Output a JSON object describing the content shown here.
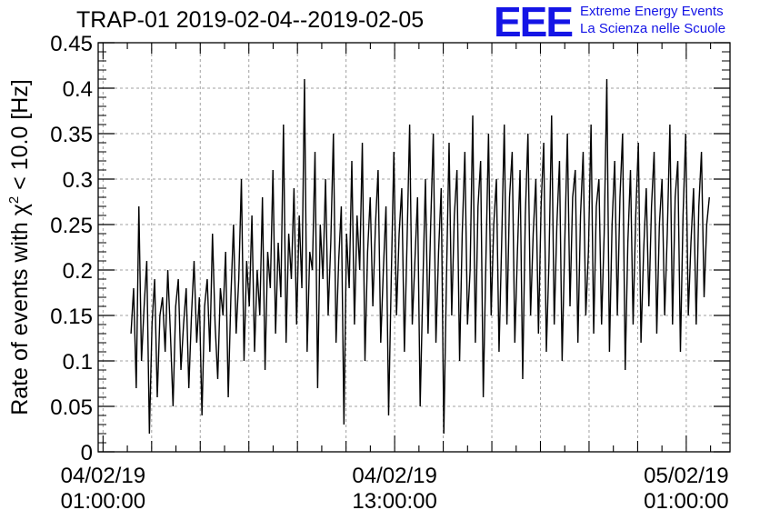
{
  "header": {
    "title": "TRAP-01 2019-02-04--2019-02-05",
    "logo_text": "EEE",
    "logo_line1": "Extreme Energy Events",
    "logo_line2": "La Scienza nelle Scuole"
  },
  "colors": {
    "logo": "#1414e6",
    "series": "#000000",
    "grid": "#a0a0a0"
  },
  "chart_data": {
    "type": "line",
    "ylabel_main": "Rate of events with ",
    "ylabel_chi": "χ",
    "ylabel_sup": "2",
    "ylabel_rest": " < 10.0 [Hz]",
    "xlabel": "",
    "ylim": [
      0,
      0.45
    ],
    "xlim_hours": [
      -0.2,
      25.8
    ],
    "grid": true,
    "y_ticks": [
      0,
      0.05,
      0.1,
      0.15,
      0.2,
      0.25,
      0.3,
      0.35,
      0.4,
      0.45
    ],
    "y_tick_labels": [
      "0",
      "0.05",
      "0.1",
      "0.15",
      "0.2",
      "0.25",
      "0.3",
      "0.35",
      "0.4",
      "0.45"
    ],
    "x_ticks": [
      {
        "hour": 0,
        "date": "04/02/19",
        "time": "01:00:00"
      },
      {
        "hour": 12,
        "date": "04/02/19",
        "time": "13:00:00"
      },
      {
        "hour": 24,
        "date": "05/02/19",
        "time": "01:00:00"
      }
    ],
    "series": [
      {
        "x_start_hour": 1.15,
        "x_end_hour": 24.95,
        "values": [
          0.13,
          0.18,
          0.07,
          0.27,
          0.1,
          0.16,
          0.21,
          0.02,
          0.14,
          0.19,
          0.06,
          0.15,
          0.17,
          0.11,
          0.2,
          0.13,
          0.05,
          0.16,
          0.19,
          0.09,
          0.14,
          0.18,
          0.07,
          0.15,
          0.21,
          0.12,
          0.17,
          0.04,
          0.16,
          0.19,
          0.11,
          0.24,
          0.14,
          0.08,
          0.18,
          0.15,
          0.22,
          0.06,
          0.17,
          0.25,
          0.13,
          0.19,
          0.3,
          0.1,
          0.21,
          0.16,
          0.26,
          0.11,
          0.2,
          0.15,
          0.28,
          0.09,
          0.22,
          0.18,
          0.31,
          0.13,
          0.23,
          0.17,
          0.36,
          0.12,
          0.24,
          0.19,
          0.29,
          0.14,
          0.26,
          0.18,
          0.41,
          0.11,
          0.22,
          0.2,
          0.33,
          0.07,
          0.25,
          0.19,
          0.3,
          0.15,
          0.23,
          0.35,
          0.12,
          0.21,
          0.27,
          0.03,
          0.24,
          0.18,
          0.32,
          0.14,
          0.26,
          0.2,
          0.34,
          0.1,
          0.22,
          0.28,
          0.16,
          0.25,
          0.31,
          0.12,
          0.2,
          0.27,
          0.04,
          0.19,
          0.33,
          0.15,
          0.24,
          0.29,
          0.11,
          0.23,
          0.36,
          0.14,
          0.21,
          0.28,
          0.05,
          0.18,
          0.3,
          0.13,
          0.25,
          0.35,
          0.12,
          0.22,
          0.29,
          0.02,
          0.19,
          0.34,
          0.15,
          0.26,
          0.31,
          0.1,
          0.24,
          0.33,
          0.14,
          0.2,
          0.37,
          0.12,
          0.27,
          0.32,
          0.06,
          0.21,
          0.35,
          0.15,
          0.25,
          0.3,
          0.11,
          0.23,
          0.36,
          0.14,
          0.28,
          0.33,
          0.12,
          0.22,
          0.31,
          0.08,
          0.26,
          0.35,
          0.15,
          0.24,
          0.3,
          0.13,
          0.27,
          0.34,
          0.11,
          0.21,
          0.37,
          0.14,
          0.25,
          0.32,
          0.1,
          0.23,
          0.35,
          0.16,
          0.28,
          0.31,
          0.12,
          0.26,
          0.33,
          0.15,
          0.22,
          0.36,
          0.13,
          0.27,
          0.3,
          0.14,
          0.24,
          0.41,
          0.11,
          0.25,
          0.32,
          0.15,
          0.28,
          0.35,
          0.09,
          0.23,
          0.31,
          0.14,
          0.26,
          0.34,
          0.12,
          0.22,
          0.29,
          0.16,
          0.27,
          0.33,
          0.13,
          0.25,
          0.3,
          0.15,
          0.24,
          0.36,
          0.14,
          0.28,
          0.32,
          0.11,
          0.26,
          0.35,
          0.15,
          0.23,
          0.29,
          0.14,
          0.27,
          0.33,
          0.17,
          0.25,
          0.28
        ]
      }
    ]
  }
}
